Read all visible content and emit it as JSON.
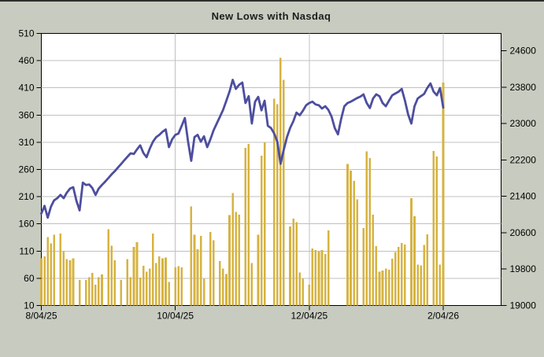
{
  "title": "New Lows with Nasdaq",
  "chart_data": {
    "type": "bar+line",
    "title": "New Lows with Nasdaq",
    "grid": true,
    "legend": "none",
    "x_axis": {
      "ticks": [
        {
          "label": "8/04/25",
          "day": 0
        },
        {
          "label": "10/04/25",
          "day": 42
        },
        {
          "label": "12/04/25",
          "day": 84
        },
        {
          "label": "2/04/26",
          "day": 126
        }
      ],
      "total_days": 127
    },
    "left_axis": {
      "series": "New Lows",
      "ylim": [
        10,
        510
      ],
      "ticks": [
        10,
        60,
        110,
        160,
        210,
        260,
        310,
        360,
        410,
        460,
        510
      ]
    },
    "right_axis": {
      "series": "Nasdaq",
      "ylim": [
        19000,
        24980
      ],
      "ticks": [
        19000,
        19800,
        20600,
        21400,
        22200,
        23000,
        23800,
        24600
      ]
    },
    "colors": {
      "background": "#c8ccc0",
      "plot_background": "#ffffff",
      "grid": "#c0c0c0",
      "axis": "#000000",
      "title": "#1c1c1c",
      "bar": "#d6b342",
      "line": "#4d4e9e"
    },
    "series": [
      {
        "name": "New Lows",
        "type": "bar",
        "axis": "left",
        "color": "#d6b342",
        "values": [
          97,
          100,
          136,
          124,
          140,
          0,
          142,
          110,
          95,
          93,
          97,
          0,
          57,
          0,
          57,
          62,
          70,
          48,
          62,
          67,
          0,
          150,
          120,
          93,
          0,
          57,
          0,
          95,
          62,
          118,
          126,
          61,
          83,
          72,
          78,
          142,
          88,
          100,
          97,
          98,
          53,
          0,
          80,
          82,
          80,
          0,
          0,
          192,
          140,
          113,
          138,
          59,
          0,
          145,
          130,
          0,
          92,
          78,
          68,
          176,
          217,
          182,
          177,
          0,
          300,
          307,
          88,
          0,
          140,
          285,
          310,
          0,
          0,
          390,
          380,
          465,
          425,
          0,
          155,
          170,
          163,
          71,
          59,
          0,
          48,
          115,
          112,
          110,
          112,
          105,
          148,
          0,
          0,
          0,
          0,
          0,
          270,
          258,
          239,
          205,
          0,
          152,
          293,
          281,
          177,
          119,
          72,
          74,
          78,
          76,
          96,
          108,
          118,
          125,
          122,
          0,
          207,
          174,
          85,
          84,
          121,
          141,
          0,
          294,
          284,
          85,
          420
        ]
      },
      {
        "name": "Nasdaq",
        "type": "line",
        "axis": "right",
        "color": "#4d4e9e",
        "values": [
          21020,
          21190,
          20930,
          21170,
          21310,
          21360,
          21430,
          21360,
          21480,
          21570,
          21600,
          21300,
          21090,
          21700,
          21650,
          21660,
          21580,
          21430,
          21570,
          21650,
          21720,
          21800,
          21880,
          21950,
          22030,
          22110,
          22190,
          22270,
          22345,
          22330,
          22430,
          22520,
          22350,
          22260,
          22450,
          22600,
          22700,
          22750,
          22820,
          22870,
          22480,
          22650,
          22750,
          22780,
          22950,
          23120,
          22600,
          22180,
          22700,
          22750,
          22600,
          22720,
          22480,
          22650,
          22850,
          23000,
          23150,
          23300,
          23500,
          23700,
          23960,
          23760,
          23850,
          23900,
          23450,
          23600,
          23000,
          23480,
          23585,
          23290,
          23500,
          22950,
          22900,
          22780,
          22600,
          22115,
          22420,
          22700,
          22900,
          23050,
          23240,
          23180,
          23280,
          23400,
          23450,
          23480,
          23420,
          23400,
          23330,
          23380,
          23300,
          23150,
          22900,
          22760,
          23100,
          23380,
          23450,
          23480,
          23520,
          23560,
          23590,
          23640,
          23450,
          23340,
          23550,
          23640,
          23600,
          23450,
          23380,
          23500,
          23620,
          23660,
          23700,
          23760,
          23500,
          23200,
          23000,
          23380,
          23550,
          23600,
          23650,
          23780,
          23880,
          23700,
          23620,
          23780,
          23350
        ]
      }
    ]
  }
}
